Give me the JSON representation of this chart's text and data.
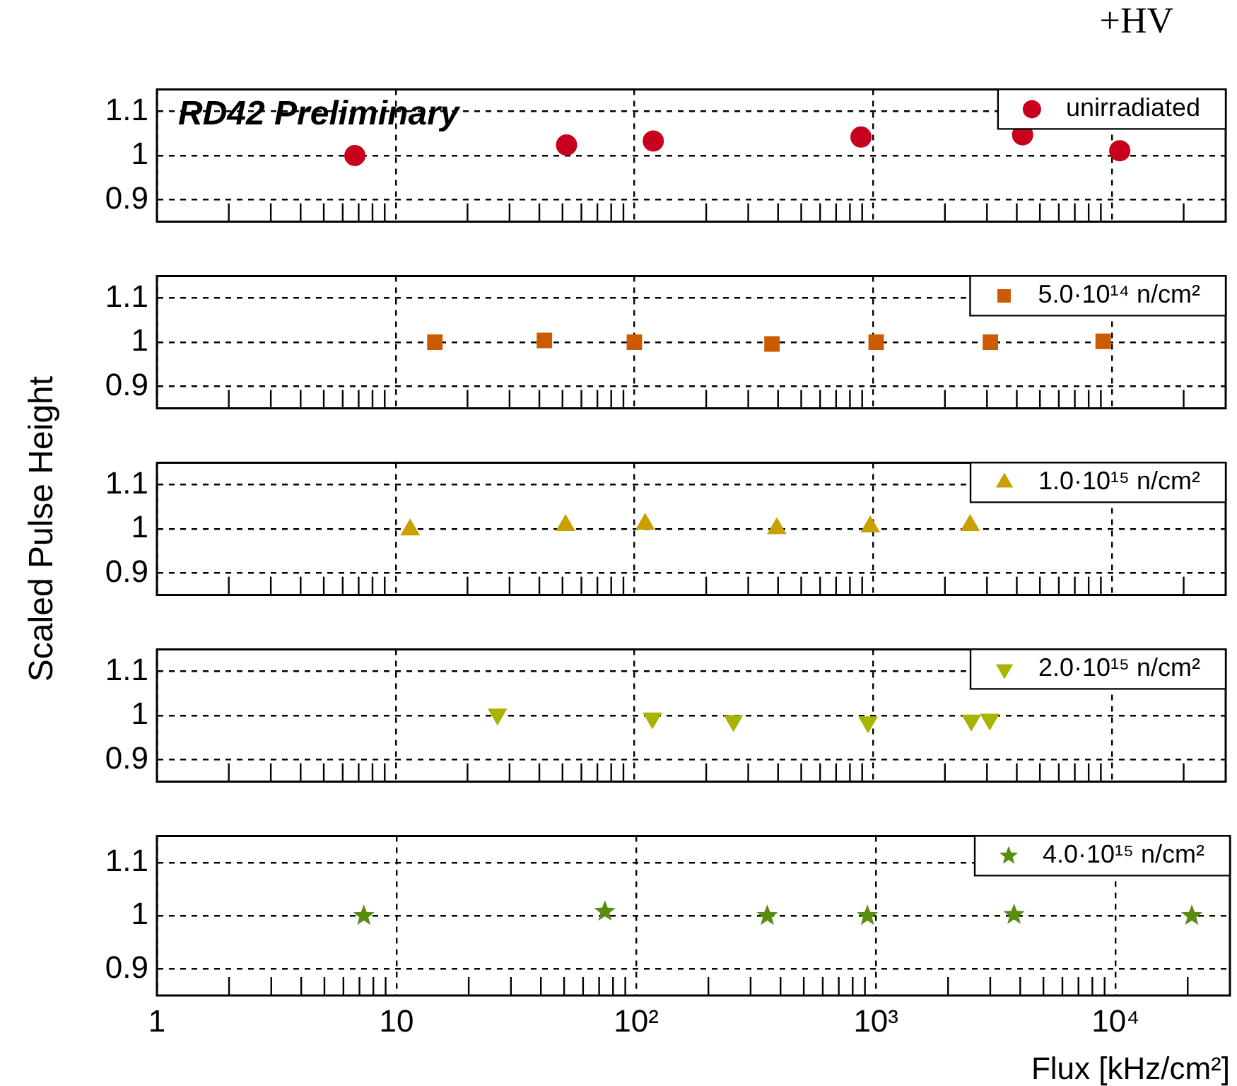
{
  "chart_data": [
    {
      "type": "scatter",
      "annotations": [
        "RD42 Preliminary",
        "+HV"
      ],
      "log": "x",
      "xlim": [
        1,
        30000
      ],
      "ylim": [
        0.85,
        1.15
      ],
      "yticks": [
        0.9,
        1,
        1.1
      ],
      "tick_labels": "y",
      "grid": true,
      "legend": "top right",
      "marker": "circle",
      "xticks": [
        {
          "value": 1,
          "label": null
        },
        {
          "value": 2,
          "label": null
        },
        {
          "value": 3,
          "label": null
        },
        {
          "value": 4,
          "label": null
        },
        {
          "value": 5,
          "label": null
        },
        {
          "value": 6,
          "label": null
        },
        {
          "value": 7,
          "label": null
        },
        {
          "value": 8,
          "label": null
        },
        {
          "value": 9,
          "label": null
        },
        {
          "value": 10,
          "label": null
        },
        {
          "value": 20,
          "label": null
        },
        {
          "value": 30,
          "label": null
        },
        {
          "value": 40,
          "label": null
        },
        {
          "value": 50,
          "label": null
        },
        {
          "value": 60,
          "label": null
        },
        {
          "value": 70,
          "label": null
        },
        {
          "value": 80,
          "label": null
        },
        {
          "value": 90,
          "label": null
        },
        {
          "value": 100,
          "label": null
        },
        {
          "value": 200,
          "label": null
        },
        {
          "value": 300,
          "label": null
        },
        {
          "value": 400,
          "label": null
        },
        {
          "value": 500,
          "label": null
        },
        {
          "value": 600,
          "label": null
        },
        {
          "value": 700,
          "label": null
        },
        {
          "value": 800,
          "label": null
        },
        {
          "value": 900,
          "label": null
        },
        {
          "value": 1000,
          "label": null
        },
        {
          "value": 2000,
          "label": null
        },
        {
          "value": 3000,
          "label": null
        },
        {
          "value": 4000,
          "label": null
        },
        {
          "value": 5000,
          "label": null
        },
        {
          "value": 6000,
          "label": null
        },
        {
          "value": 7000,
          "label": null
        },
        {
          "value": 8000,
          "label": null
        },
        {
          "value": 9000,
          "label": null
        },
        {
          "value": 10000,
          "label": null
        },
        {
          "value": 20000,
          "label": null
        }
      ],
      "series": [
        {
          "name": "unirradiated",
          "color": "#c8001e",
          "x": [
            6.75,
            52,
            120,
            890,
            4230,
            10800
          ],
          "values": [
            1.0,
            1.024,
            1.033,
            1.042,
            1.047,
            1.011
          ]
        }
      ]
    },
    {
      "type": "scatter",
      "log": "x",
      "xlim": [
        1,
        30000
      ],
      "ylim": [
        0.85,
        1.15
      ],
      "yticks": [
        0.9,
        1,
        1.1
      ],
      "tick_labels": "y",
      "grid": true,
      "legend": "top right",
      "marker": "square",
      "xticks": [
        {
          "value": 1,
          "label": null
        },
        {
          "value": 2,
          "label": null
        },
        {
          "value": 3,
          "label": null
        },
        {
          "value": 4,
          "label": null
        },
        {
          "value": 5,
          "label": null
        },
        {
          "value": 6,
          "label": null
        },
        {
          "value": 7,
          "label": null
        },
        {
          "value": 8,
          "label": null
        },
        {
          "value": 9,
          "label": null
        },
        {
          "value": 10,
          "label": null
        },
        {
          "value": 20,
          "label": null
        },
        {
          "value": 30,
          "label": null
        },
        {
          "value": 40,
          "label": null
        },
        {
          "value": 50,
          "label": null
        },
        {
          "value": 60,
          "label": null
        },
        {
          "value": 70,
          "label": null
        },
        {
          "value": 80,
          "label": null
        },
        {
          "value": 90,
          "label": null
        },
        {
          "value": 100,
          "label": null
        },
        {
          "value": 200,
          "label": null
        },
        {
          "value": 300,
          "label": null
        },
        {
          "value": 400,
          "label": null
        },
        {
          "value": 500,
          "label": null
        },
        {
          "value": 600,
          "label": null
        },
        {
          "value": 700,
          "label": null
        },
        {
          "value": 800,
          "label": null
        },
        {
          "value": 900,
          "label": null
        },
        {
          "value": 1000,
          "label": null
        },
        {
          "value": 2000,
          "label": null
        },
        {
          "value": 3000,
          "label": null
        },
        {
          "value": 4000,
          "label": null
        },
        {
          "value": 5000,
          "label": null
        },
        {
          "value": 6000,
          "label": null
        },
        {
          "value": 7000,
          "label": null
        },
        {
          "value": 8000,
          "label": null
        },
        {
          "value": 9000,
          "label": null
        },
        {
          "value": 10000,
          "label": null
        },
        {
          "value": 20000,
          "label": null
        }
      ],
      "series": [
        {
          "name": "5.0·10¹⁴ n/cm²",
          "color": "#cc5a00",
          "x": [
            14.6,
            42,
            100,
            377,
            1030,
            3100,
            9200
          ],
          "values": [
            1.0,
            1.004,
            1.0,
            0.996,
            1.0,
            1.0,
            1.002
          ]
        }
      ]
    },
    {
      "type": "scatter",
      "ylabel": "Scaled Pulse Height",
      "log": "x",
      "xlim": [
        1,
        30000
      ],
      "ylim": [
        0.85,
        1.15
      ],
      "yticks": [
        0.9,
        1,
        1.1
      ],
      "tick_labels": "y",
      "grid": true,
      "legend": "top right",
      "marker": "triangle",
      "xticks": [
        {
          "value": 1,
          "label": null
        },
        {
          "value": 2,
          "label": null
        },
        {
          "value": 3,
          "label": null
        },
        {
          "value": 4,
          "label": null
        },
        {
          "value": 5,
          "label": null
        },
        {
          "value": 6,
          "label": null
        },
        {
          "value": 7,
          "label": null
        },
        {
          "value": 8,
          "label": null
        },
        {
          "value": 9,
          "label": null
        },
        {
          "value": 10,
          "label": null
        },
        {
          "value": 20,
          "label": null
        },
        {
          "value": 30,
          "label": null
        },
        {
          "value": 40,
          "label": null
        },
        {
          "value": 50,
          "label": null
        },
        {
          "value": 60,
          "label": null
        },
        {
          "value": 70,
          "label": null
        },
        {
          "value": 80,
          "label": null
        },
        {
          "value": 90,
          "label": null
        },
        {
          "value": 100,
          "label": null
        },
        {
          "value": 200,
          "label": null
        },
        {
          "value": 300,
          "label": null
        },
        {
          "value": 400,
          "label": null
        },
        {
          "value": 500,
          "label": null
        },
        {
          "value": 600,
          "label": null
        },
        {
          "value": 700,
          "label": null
        },
        {
          "value": 800,
          "label": null
        },
        {
          "value": 900,
          "label": null
        },
        {
          "value": 1000,
          "label": null
        },
        {
          "value": 2000,
          "label": null
        },
        {
          "value": 3000,
          "label": null
        },
        {
          "value": 4000,
          "label": null
        },
        {
          "value": 5000,
          "label": null
        },
        {
          "value": 6000,
          "label": null
        },
        {
          "value": 7000,
          "label": null
        },
        {
          "value": 8000,
          "label": null
        },
        {
          "value": 9000,
          "label": null
        },
        {
          "value": 10000,
          "label": null
        },
        {
          "value": 20000,
          "label": null
        }
      ],
      "series": [
        {
          "name": "1.0·10¹⁵ n/cm²",
          "color": "#c8a000",
          "x": [
            11.5,
            51.5,
            111,
            395,
            973,
            2550
          ],
          "values": [
            0.998,
            1.008,
            1.011,
            1.001,
            1.005,
            1.008
          ]
        }
      ]
    },
    {
      "type": "scatter",
      "log": "x",
      "xlim": [
        1,
        30000
      ],
      "ylim": [
        0.85,
        1.15
      ],
      "yticks": [
        0.9,
        1,
        1.1
      ],
      "tick_labels": "y",
      "grid": true,
      "legend": "top right",
      "marker": "triangle-down",
      "xticks": [
        {
          "value": 1,
          "label": null
        },
        {
          "value": 2,
          "label": null
        },
        {
          "value": 3,
          "label": null
        },
        {
          "value": 4,
          "label": null
        },
        {
          "value": 5,
          "label": null
        },
        {
          "value": 6,
          "label": null
        },
        {
          "value": 7,
          "label": null
        },
        {
          "value": 8,
          "label": null
        },
        {
          "value": 9,
          "label": null
        },
        {
          "value": 10,
          "label": null
        },
        {
          "value": 20,
          "label": null
        },
        {
          "value": 30,
          "label": null
        },
        {
          "value": 40,
          "label": null
        },
        {
          "value": 50,
          "label": null
        },
        {
          "value": 60,
          "label": null
        },
        {
          "value": 70,
          "label": null
        },
        {
          "value": 80,
          "label": null
        },
        {
          "value": 90,
          "label": null
        },
        {
          "value": 100,
          "label": null
        },
        {
          "value": 200,
          "label": null
        },
        {
          "value": 300,
          "label": null
        },
        {
          "value": 400,
          "label": null
        },
        {
          "value": 500,
          "label": null
        },
        {
          "value": 600,
          "label": null
        },
        {
          "value": 700,
          "label": null
        },
        {
          "value": 800,
          "label": null
        },
        {
          "value": 900,
          "label": null
        },
        {
          "value": 1000,
          "label": null
        },
        {
          "value": 2000,
          "label": null
        },
        {
          "value": 3000,
          "label": null
        },
        {
          "value": 4000,
          "label": null
        },
        {
          "value": 5000,
          "label": null
        },
        {
          "value": 6000,
          "label": null
        },
        {
          "value": 7000,
          "label": null
        },
        {
          "value": 8000,
          "label": null
        },
        {
          "value": 9000,
          "label": null
        },
        {
          "value": 10000,
          "label": null
        },
        {
          "value": 20000,
          "label": null
        }
      ],
      "series": [
        {
          "name": "2.0·10¹⁵ n/cm²",
          "color": "#a8b400",
          "x": [
            26.7,
            119,
            260,
            953,
            2580,
            3080
          ],
          "values": [
            1.003,
            0.994,
            0.988,
            0.985,
            0.989,
            0.991
          ]
        }
      ]
    },
    {
      "type": "scatter",
      "xlabel": "Flux [kHz/cm²]",
      "log": "x",
      "xlim": [
        1,
        30000
      ],
      "ylim": [
        0.85,
        1.15
      ],
      "yticks": [
        0.9,
        1,
        1.1
      ],
      "grid": true,
      "legend": "top right",
      "marker": "star",
      "xticks": [
        1,
        {
          "value": 2,
          "label": null
        },
        {
          "value": 3,
          "label": null
        },
        {
          "value": 4,
          "label": null
        },
        {
          "value": 5,
          "label": null
        },
        {
          "value": 6,
          "label": null
        },
        {
          "value": 7,
          "label": null
        },
        {
          "value": 8,
          "label": null
        },
        {
          "value": 9,
          "label": null
        },
        10,
        {
          "value": 20,
          "label": null
        },
        {
          "value": 30,
          "label": null
        },
        {
          "value": 40,
          "label": null
        },
        {
          "value": 50,
          "label": null
        },
        {
          "value": 60,
          "label": null
        },
        {
          "value": 70,
          "label": null
        },
        {
          "value": 80,
          "label": null
        },
        {
          "value": 90,
          "label": null
        },
        {
          "value": 100,
          "label": "10²"
        },
        {
          "value": 200,
          "label": null
        },
        {
          "value": 300,
          "label": null
        },
        {
          "value": 400,
          "label": null
        },
        {
          "value": 500,
          "label": null
        },
        {
          "value": 600,
          "label": null
        },
        {
          "value": 700,
          "label": null
        },
        {
          "value": 800,
          "label": null
        },
        {
          "value": 900,
          "label": null
        },
        {
          "value": 1000,
          "label": "10³"
        },
        {
          "value": 2000,
          "label": null
        },
        {
          "value": 3000,
          "label": null
        },
        {
          "value": 4000,
          "label": null
        },
        {
          "value": 5000,
          "label": null
        },
        {
          "value": 6000,
          "label": null
        },
        {
          "value": 7000,
          "label": null
        },
        {
          "value": 8000,
          "label": null
        },
        {
          "value": 9000,
          "label": null
        },
        {
          "value": 10000,
          "label": "10⁴"
        },
        {
          "value": 20000,
          "label": null
        }
      ],
      "series": [
        {
          "name": "4.0·10¹⁵ n/cm²",
          "color": "#5a8c10",
          "x": [
            7.3,
            74,
            352,
            922,
            3770,
            20800
          ],
          "values": [
            1.0,
            1.008,
            1.0,
            1.0,
            1.002,
            1.0
          ]
        }
      ]
    }
  ]
}
